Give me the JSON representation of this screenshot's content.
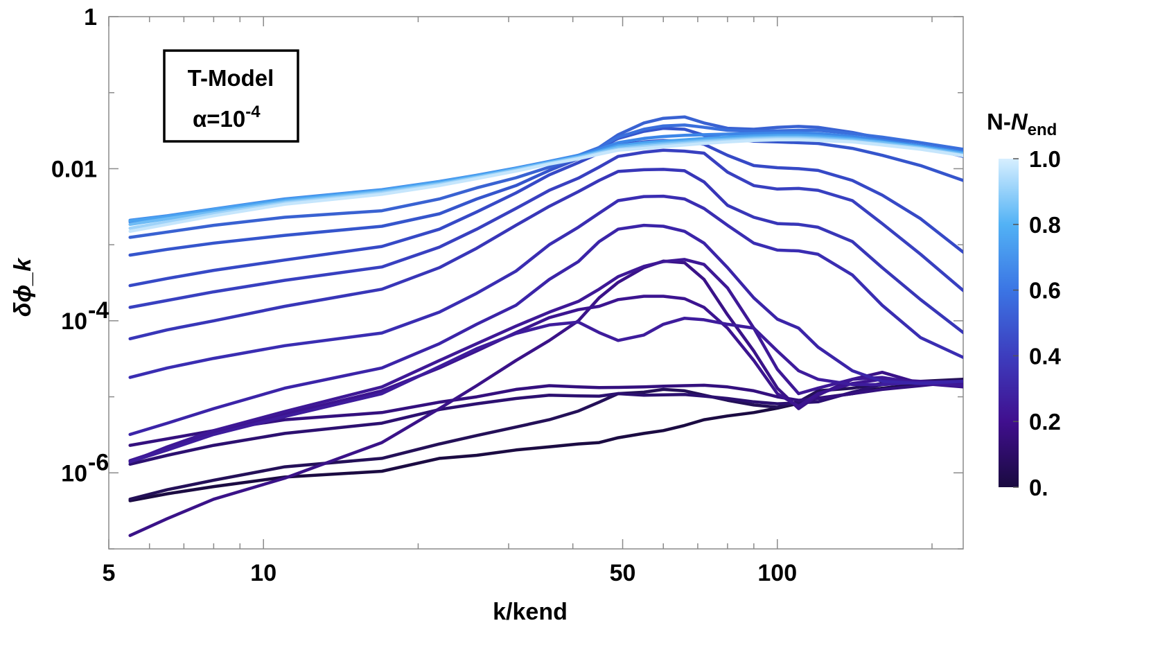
{
  "chart_data": {
    "type": "line",
    "title": "",
    "xlabel": "k/kend",
    "ylabel": "δϕ_k",
    "xscale": "log",
    "yscale": "log",
    "xlim": [
      5,
      230
    ],
    "ylim": [
      1e-07,
      1
    ],
    "xticks": [
      {
        "value": 5,
        "label": "5"
      },
      {
        "value": 10,
        "label": "10"
      },
      {
        "value": 50,
        "label": "50"
      },
      {
        "value": 100,
        "label": "100"
      }
    ],
    "yticks": [
      {
        "value": 1,
        "label": "1"
      },
      {
        "value": 0.01,
        "label": "0.01"
      },
      {
        "value": 0.0001,
        "label": "10",
        "exp": "-4"
      },
      {
        "value": 1e-06,
        "label": "10",
        "exp": "-6"
      }
    ],
    "annotation": {
      "line1": "T-Model",
      "line2_prefix": "α=10",
      "line2_exp": "-4"
    },
    "colorbar": {
      "title_plain": "N-",
      "title_italic": "N",
      "title_sub": "end",
      "range": [
        0,
        1
      ],
      "tick_labels": [
        "1.0",
        "0.8",
        "0.6",
        "0.4",
        "0.2",
        "0."
      ],
      "colors": [
        "#1a0a40",
        "#400f8e",
        "#3d3dbe",
        "#3b75e4",
        "#52b2f5",
        "#d7efff"
      ]
    },
    "x": [
      5.5,
      6.5,
      8,
      11,
      17,
      22,
      26,
      31,
      36,
      41,
      45,
      49,
      55,
      60,
      66,
      72,
      80,
      90,
      100,
      110,
      120,
      140,
      160,
      190,
      230
    ],
    "series": [
      {
        "name": "0.00",
        "color": "#1b0b42",
        "values": [
          4.3e-07,
          5.3e-07,
          6.6e-07,
          8.8e-07,
          1.05e-06,
          1.55e-06,
          1.7e-06,
          2e-06,
          2.2e-06,
          2.4e-06,
          2.5e-06,
          2.9e-06,
          3.3e-06,
          3.6e-06,
          4.2e-06,
          5e-06,
          5.6e-06,
          6.2e-06,
          7.1e-06,
          8.2e-06,
          9.6e-06,
          1.1e-05,
          1.3e-05,
          1.45e-05,
          1.6e-05
        ]
      },
      {
        "name": "0.05",
        "color": "#241058",
        "values": [
          4.5e-07,
          6e-07,
          8e-07,
          1.2e-06,
          1.55e-06,
          2.4e-06,
          3.1e-06,
          4e-06,
          5e-06,
          6.5e-06,
          8.5e-06,
          1.1e-05,
          1.15e-05,
          1.25e-05,
          1.2e-05,
          1.05e-05,
          9e-06,
          7.8e-06,
          7.3e-06,
          8.6e-06,
          1.2e-05,
          1.3e-05,
          1.5e-05,
          1.6e-05,
          1.7e-05
        ]
      },
      {
        "name": "0.10",
        "color": "#2c1070",
        "values": [
          1.3e-06,
          1.7e-06,
          2.3e-06,
          3.3e-06,
          4.5e-06,
          6.8e-06,
          8.1e-06,
          9.5e-06,
          1.05e-05,
          1.03e-05,
          1.02e-05,
          1.1e-05,
          1.05e-05,
          1.06e-05,
          1.07e-05,
          1.02e-05,
          9.5e-06,
          8.6e-06,
          8.1e-06,
          8.3e-06,
          8.6e-06,
          1.15e-05,
          1.45e-05,
          1.55e-05,
          1.6e-05
        ]
      },
      {
        "name": "0.15",
        "color": "#34107e",
        "values": [
          2.3e-06,
          2.8e-06,
          3.6e-06,
          5e-06,
          6.2e-06,
          8.5e-06,
          1e-05,
          1.25e-05,
          1.4e-05,
          1.35e-05,
          1.32e-05,
          1.33e-05,
          1.35e-05,
          1.38e-05,
          1.4e-05,
          1.42e-05,
          1.35e-05,
          1.2e-05,
          1e-05,
          9e-06,
          9.5e-06,
          1.1e-05,
          1.25e-05,
          1.4e-05,
          1.6e-05
        ]
      },
      {
        "name": "0.20",
        "color": "#3a1288",
        "values": [
          1.5e-07,
          2.5e-07,
          4.5e-07,
          8.5e-07,
          2.5e-06,
          7e-06,
          1.4e-05,
          3e-05,
          5.5e-05,
          0.0001,
          0.0002,
          0.00032,
          0.0005,
          0.00061,
          0.00058,
          0.00035,
          0.00012,
          4e-05,
          1.3e-05,
          7e-06,
          1.05e-05,
          1.7e-05,
          2.1e-05,
          1.5e-05,
          1.35e-05
        ]
      },
      {
        "name": "0.25",
        "color": "#3c1490",
        "values": [
          1.45e-06,
          2.1e-06,
          3.3e-06,
          5.9e-06,
          1.2e-05,
          2.4e-05,
          4e-05,
          7e-05,
          0.00011,
          0.00014,
          0.000155,
          0.00019,
          0.00021,
          0.00021,
          0.000195,
          0.00015,
          8e-05,
          3e-05,
          1.1e-05,
          7.5e-06,
          1.1e-05,
          1.5e-05,
          1.7e-05,
          1.6e-05,
          1.5e-05
        ]
      },
      {
        "name": "0.30",
        "color": "#3e1896",
        "values": [
          1.4e-06,
          2.2e-06,
          3.6e-06,
          6.4e-06,
          1.35e-05,
          3e-05,
          5e-05,
          8.5e-05,
          0.00013,
          0.00018,
          0.00026,
          0.00038,
          0.00052,
          0.0006,
          0.00064,
          0.00055,
          0.00027,
          8e-05,
          2.3e-05,
          1.1e-05,
          1.3e-05,
          1.7e-05,
          1.8e-05,
          1.5e-05,
          1.4e-05
        ]
      },
      {
        "name": "0.35",
        "color": "#3e1c9c",
        "values": [
          1.4e-06,
          2e-06,
          3.2e-06,
          5.5e-06,
          1.1e-05,
          2.5e-05,
          4.3e-05,
          6.8e-05,
          8.8e-05,
          9.6e-05,
          7e-05,
          5.5e-05,
          6.5e-05,
          9e-05,
          0.000108,
          0.000103,
          9e-05,
          8e-05,
          4e-05,
          2.2e-05,
          1.7e-05,
          1.45e-05,
          1.45e-05,
          1.55e-05,
          1.6e-05
        ]
      },
      {
        "name": "0.40",
        "color": "#3b24a8",
        "values": [
          3.2e-06,
          4.5e-06,
          7e-06,
          1.3e-05,
          2.4e-05,
          5e-05,
          9e-05,
          0.00016,
          0.00035,
          0.0006,
          0.0011,
          0.0016,
          0.0018,
          0.00175,
          0.0015,
          0.00105,
          0.0005,
          0.0002,
          0.000105,
          8e-05,
          4.5e-05,
          2.2e-05,
          1.6e-05,
          1.5e-05,
          1.6e-05
        ]
      },
      {
        "name": "0.45",
        "color": "#3a2db2",
        "values": [
          1.8e-05,
          2.4e-05,
          3.2e-05,
          4.7e-05,
          6.9e-05,
          0.00013,
          0.00023,
          0.00045,
          0.001,
          0.0017,
          0.0026,
          0.0038,
          0.0043,
          0.00435,
          0.004,
          0.003,
          0.0018,
          0.00105,
          0.00085,
          0.00083,
          0.00075,
          0.0004,
          0.00016,
          6e-05,
          3.3e-05
        ]
      },
      {
        "name": "0.50",
        "color": "#3836b8",
        "values": [
          5.8e-05,
          7.6e-05,
          0.0001,
          0.000155,
          0.00026,
          0.0005,
          0.0009,
          0.0018,
          0.0032,
          0.005,
          0.007,
          0.0092,
          0.0097,
          0.0098,
          0.0094,
          0.0067,
          0.0033,
          0.0023,
          0.0019,
          0.00185,
          0.0017,
          0.0011,
          0.0005,
          0.00019,
          7e-05
        ]
      },
      {
        "name": "0.55",
        "color": "#3840c0",
        "values": [
          0.00015,
          0.000185,
          0.00024,
          0.00034,
          0.00051,
          0.00093,
          0.0016,
          0.003,
          0.0052,
          0.0075,
          0.0105,
          0.0145,
          0.0165,
          0.0175,
          0.017,
          0.016,
          0.009,
          0.006,
          0.0054,
          0.0055,
          0.0052,
          0.0038,
          0.0019,
          0.00075,
          0.00025
        ]
      },
      {
        "name": "0.60",
        "color": "#3649c6",
        "values": [
          0.00029,
          0.00036,
          0.00046,
          0.00063,
          0.00095,
          0.0016,
          0.0027,
          0.0048,
          0.0083,
          0.012,
          0.016,
          0.0205,
          0.0225,
          0.0235,
          0.023,
          0.021,
          0.015,
          0.011,
          0.0103,
          0.01,
          0.0095,
          0.007,
          0.0045,
          0.0022,
          0.0008
        ]
      },
      {
        "name": "0.65",
        "color": "#3555cc",
        "values": [
          0.00073,
          0.00087,
          0.00105,
          0.00133,
          0.00175,
          0.00255,
          0.004,
          0.006,
          0.0095,
          0.0135,
          0.0185,
          0.025,
          0.031,
          0.034,
          0.033,
          0.0275,
          0.025,
          0.023,
          0.0225,
          0.022,
          0.0215,
          0.0185,
          0.015,
          0.011,
          0.007
        ]
      },
      {
        "name": "0.70",
        "color": "#3962d2",
        "values": [
          0.00125,
          0.00147,
          0.0018,
          0.0023,
          0.0028,
          0.004,
          0.0056,
          0.0076,
          0.0105,
          0.014,
          0.019,
          0.028,
          0.04,
          0.046,
          0.048,
          0.04,
          0.034,
          0.033,
          0.035,
          0.036,
          0.035,
          0.03,
          0.025,
          0.0195,
          0.0145
        ]
      },
      {
        "name": "0.75",
        "color": "#3a6fdc",
        "values": [
          0.002,
          0.0023,
          0.0028,
          0.0038,
          0.0051,
          0.0065,
          0.008,
          0.01,
          0.012,
          0.015,
          0.019,
          0.026,
          0.033,
          0.0365,
          0.0375,
          0.035,
          0.032,
          0.031,
          0.0315,
          0.032,
          0.032,
          0.029,
          0.026,
          0.022,
          0.018
        ]
      },
      {
        "name": "0.80",
        "color": "#3c86e8",
        "values": [
          0.0021,
          0.0024,
          0.00295,
          0.004,
          0.0053,
          0.0068,
          0.0082,
          0.0102,
          0.0125,
          0.015,
          0.018,
          0.022,
          0.025,
          0.0265,
          0.0275,
          0.028,
          0.0285,
          0.029,
          0.0295,
          0.0295,
          0.029,
          0.0265,
          0.0235,
          0.02,
          0.0165
        ]
      },
      {
        "name": "0.85",
        "color": "#4aa2f0",
        "values": [
          0.00205,
          0.00235,
          0.0029,
          0.0039,
          0.0052,
          0.0067,
          0.0081,
          0.01,
          0.0122,
          0.0145,
          0.017,
          0.02,
          0.022,
          0.023,
          0.024,
          0.025,
          0.026,
          0.027,
          0.0275,
          0.0275,
          0.027,
          0.025,
          0.0225,
          0.0195,
          0.016
        ]
      },
      {
        "name": "0.90",
        "color": "#6fbcf5",
        "values": [
          0.00185,
          0.0022,
          0.0027,
          0.0037,
          0.005,
          0.0064,
          0.0078,
          0.0098,
          0.012,
          0.0142,
          0.0165,
          0.019,
          0.0205,
          0.0215,
          0.0225,
          0.0235,
          0.0245,
          0.0255,
          0.026,
          0.026,
          0.0255,
          0.024,
          0.022,
          0.019,
          0.0155
        ]
      },
      {
        "name": "0.95",
        "color": "#9fd3f9",
        "values": [
          0.00165,
          0.002,
          0.00255,
          0.00355,
          0.0048,
          0.0062,
          0.0076,
          0.0095,
          0.0117,
          0.0138,
          0.016,
          0.018,
          0.0195,
          0.0205,
          0.0215,
          0.0225,
          0.0235,
          0.0245,
          0.025,
          0.025,
          0.0245,
          0.023,
          0.021,
          0.0185,
          0.015
        ]
      },
      {
        "name": "1.00",
        "color": "#c6e6fc",
        "values": [
          0.0015,
          0.00185,
          0.0024,
          0.0034,
          0.0046,
          0.006,
          0.0074,
          0.0093,
          0.0115,
          0.0135,
          0.0155,
          0.0175,
          0.0185,
          0.0195,
          0.0205,
          0.0215,
          0.0225,
          0.0235,
          0.024,
          0.024,
          0.0235,
          0.0225,
          0.0205,
          0.018,
          0.0148
        ]
      }
    ]
  }
}
